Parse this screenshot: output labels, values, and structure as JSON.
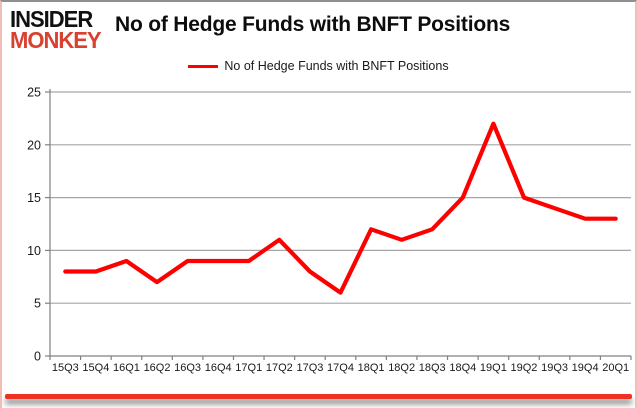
{
  "logo": {
    "line1": "INSIDER",
    "line2": "MONKEY"
  },
  "header": {
    "title": "No of Hedge Funds with BNFT Positions"
  },
  "legend": {
    "label": "No of Hedge Funds with BNFT Positions",
    "line_color": "#fe0000"
  },
  "chart_data": {
    "type": "line",
    "title": "No of Hedge Funds with BNFT Positions",
    "categories": [
      "15Q3",
      "15Q4",
      "16Q1",
      "16Q2",
      "16Q3",
      "16Q4",
      "17Q1",
      "17Q2",
      "17Q3",
      "17Q4",
      "18Q1",
      "18Q2",
      "18Q3",
      "18Q4",
      "19Q1",
      "19Q2",
      "19Q3",
      "19Q4",
      "20Q1"
    ],
    "series": [
      {
        "name": "No of Hedge Funds with BNFT Positions",
        "values": [
          8,
          8,
          9,
          7,
          9,
          9,
          9,
          11,
          8,
          6,
          12,
          11,
          12,
          15,
          22,
          15,
          14,
          13,
          13
        ],
        "color": "#fe0000"
      }
    ],
    "xlabel": "",
    "ylabel": "",
    "ylim": [
      0,
      25
    ],
    "yticks": [
      0,
      5,
      10,
      15,
      20,
      25
    ],
    "grid": true,
    "legend_position": "top-center",
    "gridline_color": "#a6a6a6",
    "axis_color": "#808080"
  }
}
